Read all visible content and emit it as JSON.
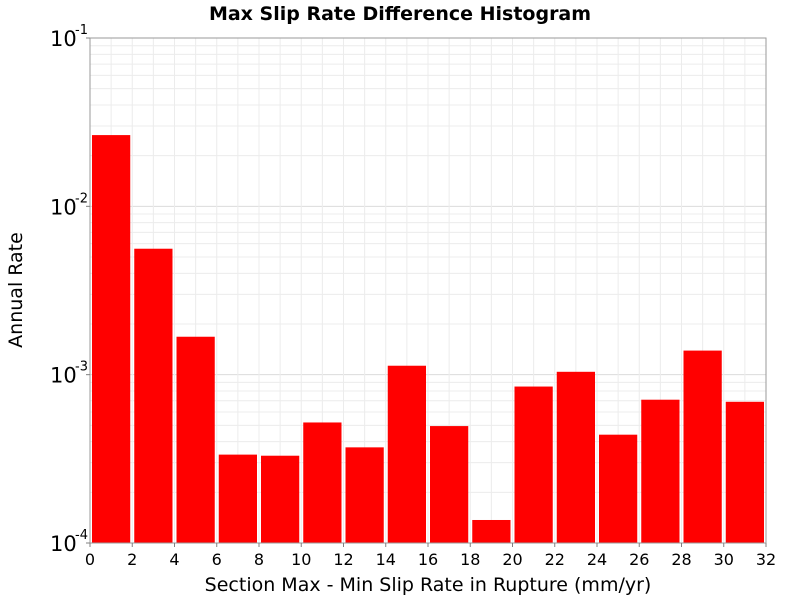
{
  "chart_data": {
    "type": "bar",
    "title": "Max Slip Rate Difference Histogram",
    "xlabel": "Section Max - Min Slip Rate in Rupture (mm/yr)",
    "ylabel": "Annual Rate",
    "yscale": "log",
    "xlim": [
      0,
      32
    ],
    "ylim": [
      0.0001,
      0.1
    ],
    "grid": true,
    "bar_color": "#ff0000",
    "bin_width": 2,
    "x": [
      1,
      3,
      5,
      7,
      9,
      11,
      13,
      15,
      17,
      19,
      21,
      23,
      25,
      27,
      29,
      31
    ],
    "values": [
      0.0265,
      0.0056,
      0.00168,
      0.000335,
      0.00033,
      0.00052,
      0.00037,
      0.00113,
      0.000495,
      0.000137,
      0.00085,
      0.00104,
      0.00044,
      0.00071,
      0.00139,
      0.00069
    ],
    "x_ticks": [
      "0",
      "2",
      "4",
      "6",
      "8",
      "10",
      "12",
      "14",
      "16",
      "18",
      "20",
      "22",
      "24",
      "26",
      "28",
      "30",
      "32"
    ],
    "y_ticks": [
      {
        "base": "10",
        "exp": "-1",
        "value": 0.1
      },
      {
        "base": "10",
        "exp": "-2",
        "value": 0.01
      },
      {
        "base": "10",
        "exp": "-3",
        "value": 0.001
      },
      {
        "base": "10",
        "exp": "-4",
        "value": 0.0001
      }
    ]
  }
}
